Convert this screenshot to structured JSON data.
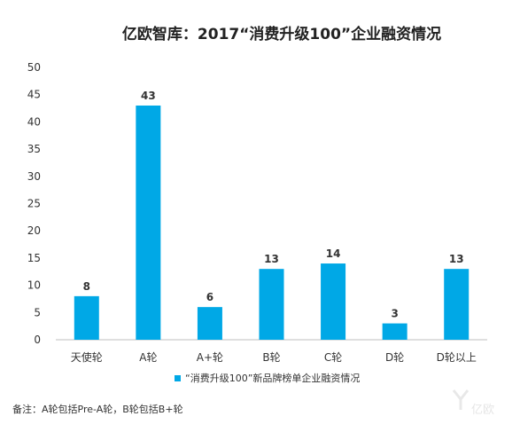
{
  "chart_data": {
    "type": "bar",
    "title": "亿欧智库：2017“消费升级100”企业融资情况",
    "categories": [
      "天使轮",
      "A轮",
      "A+轮",
      "B轮",
      "C轮",
      "D轮",
      "D轮以上"
    ],
    "series": [
      {
        "name": "“消费升级100”新品牌榜单企业融资情况",
        "values": [
          8,
          43,
          6,
          13,
          14,
          3,
          13
        ]
      }
    ],
    "ylim": [
      0,
      50
    ],
    "yticks": [
      0,
      5,
      10,
      15,
      20,
      25,
      30,
      35,
      40,
      45,
      50
    ],
    "grid": false,
    "legend_position": "bottom",
    "bar_color": "#00a8e6"
  },
  "note": "备注：A轮包括Pre-A轮，B轮包括B+轮",
  "watermark": "亿欧"
}
